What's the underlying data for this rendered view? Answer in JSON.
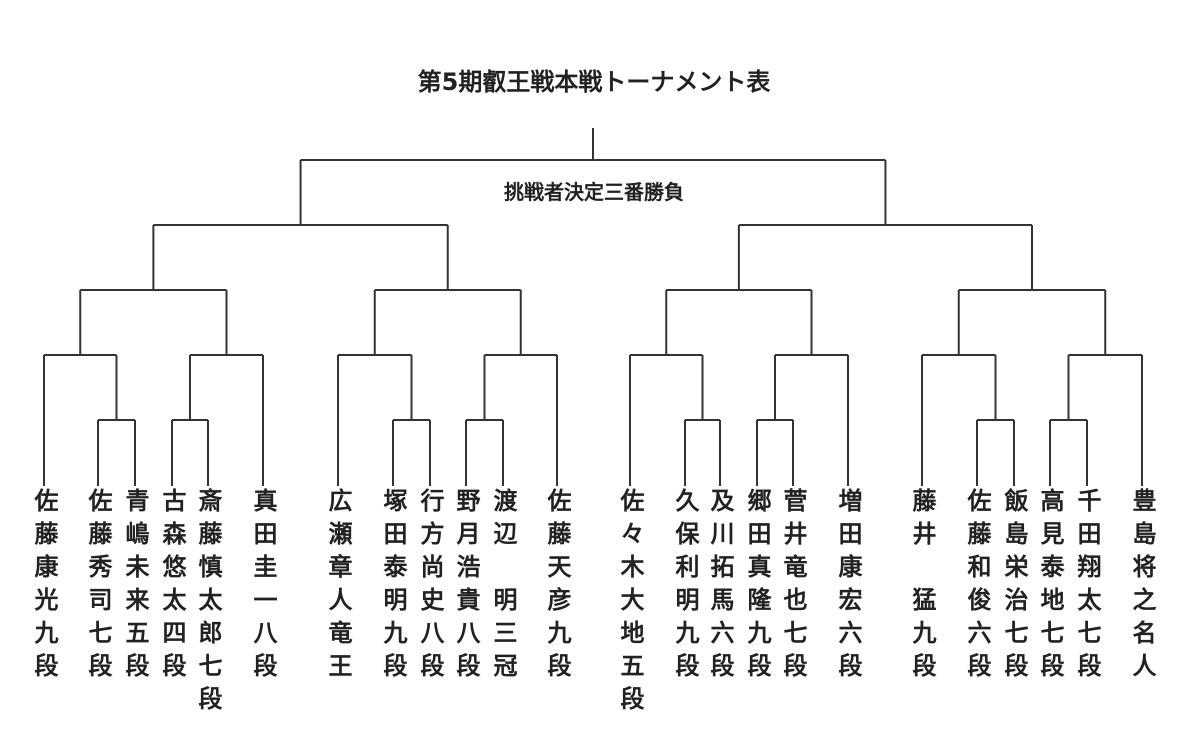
{
  "title": "第5期叡王戦本戦トーナメント表",
  "final_label": "挑戦者決定三番勝負",
  "players": [
    "佐藤康光九段",
    "佐藤秀司七段",
    "青嶋未来五段",
    "古森悠太四段",
    "斎藤慎太郎七段",
    "真田圭一八段",
    "広瀬章人竜王",
    "塚田泰明九段",
    "行方尚史八段",
    "野月浩貴八段",
    "渡辺　明三冠",
    "佐藤天彦九段",
    "佐々木大地五段",
    "久保利明九段",
    "及川拓馬六段",
    "郷田真隆九段",
    "菅井竜也七段",
    "増田康宏六段",
    "藤井　猛九段",
    "佐藤和俊六段",
    "飯島栄治七段",
    "高見泰地七段",
    "千田翔太七段",
    "豊島将之名人"
  ],
  "line_color": "#333333"
}
